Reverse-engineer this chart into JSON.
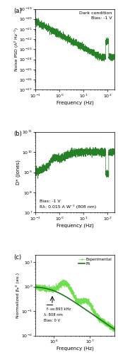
{
  "panel_a": {
    "label": "(a)",
    "annotation": "Dark condition\nBias: -1 V",
    "xlabel": "Frequency (Hz)",
    "ylabel": "Noise PSD (A² Hz⁻¹)",
    "xlim": [
      0.1,
      200
    ],
    "ylim": [
      1e-27,
      1e-19
    ],
    "color": "#1a7a1a"
  },
  "panel_b": {
    "label": "(b)",
    "annotation": "Bias: -1 V\nRλ: 0.015 A W⁻¹ (808 nm)",
    "xlabel": "Frequency (Hz)",
    "ylabel": "D* (Jones)",
    "xlim": [
      0.1,
      200
    ],
    "ylim": [
      10000000.0,
      100000000000.0
    ],
    "color": "#1a7a1a"
  },
  "panel_c": {
    "label": "(c)",
    "annotation_line1": "f₋₃₈₈:893 kHz",
    "annotation_line2": "λ: 808 nm",
    "annotation_line3": "Bias: 0 V",
    "xlabel": "Frequency (Hz)",
    "ylabel": "Normalized βₚᴴ (au.)",
    "xlim": [
      300000.0,
      50000000.0
    ],
    "ylim": [
      0.01,
      20
    ],
    "legend_exp": "Experimental",
    "legend_fit": "Fit",
    "color_exp": "#66dd44",
    "color_fit": "#1a7a1a"
  },
  "figure_bg": "#ffffff"
}
